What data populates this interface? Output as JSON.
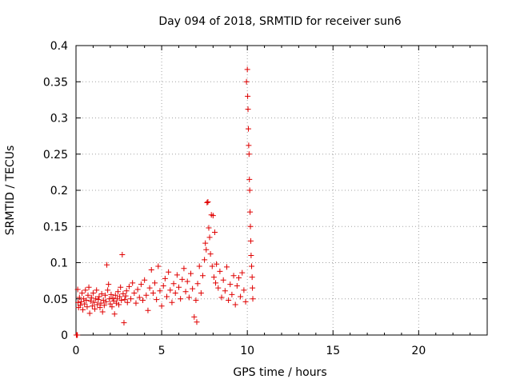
{
  "chart_data": {
    "type": "scatter",
    "title": "Day 094 of 2018, SRMTID for receiver sun6",
    "xlabel": "GPS time / hours",
    "ylabel": "SRMTID / TECUs",
    "xlim": [
      0,
      24
    ],
    "ylim": [
      0,
      0.4
    ],
    "x_ticks": [
      0,
      5,
      10,
      15,
      20
    ],
    "x_tick_labels": [
      "0",
      "5",
      "10",
      "15",
      "20"
    ],
    "y_ticks": [
      0,
      0.05,
      0.1,
      0.15,
      0.2,
      0.25,
      0.3,
      0.35,
      0.4
    ],
    "y_tick_labels": [
      "0",
      "0.05",
      "0.1",
      "0.15",
      "0.2",
      "0.25",
      "0.3",
      "0.35",
      "0.4"
    ],
    "grid": true,
    "marker": "+",
    "marker_color": "#e00000",
    "series": [
      {
        "name": "SRMTID",
        "points": [
          [
            0.02,
            0.0
          ],
          [
            0.05,
            0.0
          ],
          [
            0.08,
            0.0
          ],
          [
            0.1,
            0.063
          ],
          [
            0.12,
            0.045
          ],
          [
            0.15,
            0.038
          ],
          [
            0.2,
            0.052
          ],
          [
            0.25,
            0.041
          ],
          [
            0.3,
            0.046
          ],
          [
            0.35,
            0.058
          ],
          [
            0.4,
            0.035
          ],
          [
            0.45,
            0.05
          ],
          [
            0.5,
            0.043
          ],
          [
            0.55,
            0.062
          ],
          [
            0.6,
            0.048
          ],
          [
            0.65,
            0.039
          ],
          [
            0.7,
            0.055
          ],
          [
            0.75,
            0.066
          ],
          [
            0.8,
            0.03
          ],
          [
            0.85,
            0.047
          ],
          [
            0.9,
            0.052
          ],
          [
            0.95,
            0.04
          ],
          [
            1.0,
            0.058
          ],
          [
            1.05,
            0.045
          ],
          [
            1.1,
            0.036
          ],
          [
            1.15,
            0.05
          ],
          [
            1.2,
            0.062
          ],
          [
            1.25,
            0.042
          ],
          [
            1.3,
            0.049
          ],
          [
            1.35,
            0.053
          ],
          [
            1.4,
            0.038
          ],
          [
            1.45,
            0.044
          ],
          [
            1.5,
            0.057
          ],
          [
            1.55,
            0.032
          ],
          [
            1.6,
            0.048
          ],
          [
            1.65,
            0.041
          ],
          [
            1.7,
            0.055
          ],
          [
            1.75,
            0.046
          ],
          [
            1.8,
            0.097
          ],
          [
            1.85,
            0.062
          ],
          [
            1.9,
            0.07
          ],
          [
            1.95,
            0.05
          ],
          [
            2.0,
            0.043
          ],
          [
            2.05,
            0.056
          ],
          [
            2.1,
            0.039
          ],
          [
            2.15,
            0.051
          ],
          [
            2.2,
            0.047
          ],
          [
            2.25,
            0.029
          ],
          [
            2.3,
            0.055
          ],
          [
            2.35,
            0.044
          ],
          [
            2.4,
            0.05
          ],
          [
            2.45,
            0.06
          ],
          [
            2.5,
            0.042
          ],
          [
            2.55,
            0.053
          ],
          [
            2.6,
            0.066
          ],
          [
            2.65,
            0.048
          ],
          [
            2.7,
            0.111
          ],
          [
            2.75,
            0.057
          ],
          [
            2.8,
            0.017
          ],
          [
            2.85,
            0.049
          ],
          [
            2.9,
            0.054
          ],
          [
            2.95,
            0.061
          ],
          [
            3.0,
            0.045
          ],
          [
            3.1,
            0.067
          ],
          [
            3.2,
            0.05
          ],
          [
            3.3,
            0.072
          ],
          [
            3.4,
            0.058
          ],
          [
            3.5,
            0.044
          ],
          [
            3.6,
            0.063
          ],
          [
            3.7,
            0.052
          ],
          [
            3.8,
            0.07
          ],
          [
            3.9,
            0.048
          ],
          [
            4.0,
            0.076
          ],
          [
            4.1,
            0.055
          ],
          [
            4.2,
            0.034
          ],
          [
            4.3,
            0.065
          ],
          [
            4.4,
            0.09
          ],
          [
            4.5,
            0.058
          ],
          [
            4.6,
            0.072
          ],
          [
            4.7,
            0.049
          ],
          [
            4.8,
            0.095
          ],
          [
            4.9,
            0.061
          ],
          [
            5.0,
            0.04
          ],
          [
            5.1,
            0.068
          ],
          [
            5.2,
            0.078
          ],
          [
            5.3,
            0.053
          ],
          [
            5.4,
            0.087
          ],
          [
            5.5,
            0.062
          ],
          [
            5.6,
            0.045
          ],
          [
            5.7,
            0.071
          ],
          [
            5.8,
            0.058
          ],
          [
            5.9,
            0.083
          ],
          [
            6.0,
            0.066
          ],
          [
            6.1,
            0.05
          ],
          [
            6.2,
            0.077
          ],
          [
            6.3,
            0.092
          ],
          [
            6.4,
            0.06
          ],
          [
            6.5,
            0.074
          ],
          [
            6.6,
            0.052
          ],
          [
            6.7,
            0.085
          ],
          [
            6.8,
            0.064
          ],
          [
            6.9,
            0.025
          ],
          [
            7.0,
            0.048
          ],
          [
            7.05,
            0.018
          ],
          [
            7.1,
            0.071
          ],
          [
            7.2,
            0.095
          ],
          [
            7.3,
            0.058
          ],
          [
            7.4,
            0.082
          ],
          [
            7.5,
            0.104
          ],
          [
            7.55,
            0.127
          ],
          [
            7.6,
            0.118
          ],
          [
            7.65,
            0.183
          ],
          [
            7.7,
            0.184
          ],
          [
            7.75,
            0.148
          ],
          [
            7.8,
            0.135
          ],
          [
            7.85,
            0.112
          ],
          [
            7.9,
            0.166
          ],
          [
            7.95,
            0.095
          ],
          [
            8.0,
            0.165
          ],
          [
            8.05,
            0.08
          ],
          [
            8.1,
            0.142
          ],
          [
            8.15,
            0.072
          ],
          [
            8.2,
            0.098
          ],
          [
            8.3,
            0.065
          ],
          [
            8.4,
            0.088
          ],
          [
            8.5,
            0.052
          ],
          [
            8.6,
            0.076
          ],
          [
            8.7,
            0.061
          ],
          [
            8.8,
            0.094
          ],
          [
            8.9,
            0.048
          ],
          [
            9.0,
            0.07
          ],
          [
            9.1,
            0.056
          ],
          [
            9.2,
            0.082
          ],
          [
            9.3,
            0.042
          ],
          [
            9.4,
            0.068
          ],
          [
            9.5,
            0.079
          ],
          [
            9.6,
            0.053
          ],
          [
            9.7,
            0.086
          ],
          [
            9.8,
            0.062
          ],
          [
            9.9,
            0.046
          ],
          [
            9.95,
            0.35
          ],
          [
            10.0,
            0.367
          ],
          [
            10.02,
            0.33
          ],
          [
            10.04,
            0.312
          ],
          [
            10.06,
            0.285
          ],
          [
            10.08,
            0.262
          ],
          [
            10.1,
            0.25
          ],
          [
            10.12,
            0.215
          ],
          [
            10.14,
            0.2
          ],
          [
            10.16,
            0.17
          ],
          [
            10.18,
            0.15
          ],
          [
            10.2,
            0.13
          ],
          [
            10.22,
            0.11
          ],
          [
            10.25,
            0.095
          ],
          [
            10.28,
            0.08
          ],
          [
            10.3,
            0.065
          ],
          [
            10.32,
            0.05
          ]
        ]
      }
    ]
  }
}
